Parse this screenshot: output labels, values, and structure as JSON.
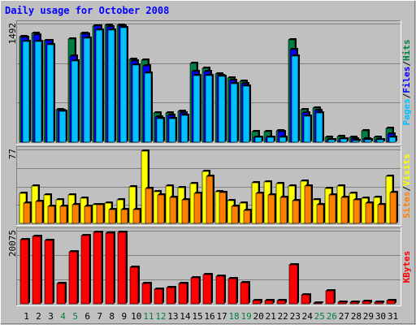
{
  "chart_data": {
    "type": "bar",
    "title": "Daily usage for October 2008",
    "colors": {
      "background": "#c0c0c0",
      "frame_light": "#ffffff",
      "frame_dark": "#808080",
      "title": "#0000ff",
      "grid": "#808080",
      "hits": "#008040",
      "files": "#0000ff",
      "pages": "#00c0ff",
      "visits": "#ffff00",
      "sites": "#ff8000",
      "kbytes": "#ff0000",
      "weekday_label": "#000000",
      "weekend_label": "#008040"
    },
    "categories": [
      "1",
      "2",
      "3",
      "4",
      "5",
      "6",
      "7",
      "8",
      "9",
      "10",
      "11",
      "12",
      "13",
      "14",
      "15",
      "16",
      "17",
      "18",
      "19",
      "20",
      "21",
      "22",
      "23",
      "24",
      "25",
      "26",
      "27",
      "28",
      "29",
      "30",
      "31"
    ],
    "weekend_days": [
      "4",
      "5",
      "11",
      "12",
      "18",
      "19",
      "25",
      "26"
    ],
    "panels": [
      {
        "id": "hits-files-pages",
        "ymax_label": "1492",
        "ymax": 1492,
        "legend": [
          {
            "text": "Pages",
            "color": "#00c0ff"
          },
          {
            "text": "Files",
            "color": "#0000ff"
          },
          {
            "text": "Hits",
            "color": "#008040"
          }
        ],
        "series": [
          {
            "name": "Hits",
            "values": [
              1352,
              1390,
              1300,
              415,
              1320,
              1385,
              1485,
              1490,
              1492,
              1056,
              1046,
              372,
              372,
              389,
              1009,
              945,
              875,
              818,
              780,
              132,
              136,
              142,
              1308,
              410,
              440,
              60,
              70,
              60,
              140,
              60,
              180
            ]
          },
          {
            "name": "Files",
            "values": [
              1340,
              1370,
              1290,
              405,
              1100,
              1378,
              1480,
              1468,
              1478,
              1040,
              970,
              322,
              340,
              369,
              900,
              905,
              854,
              787,
              746,
              65,
              66,
              132,
              1178,
              376,
              409,
              30,
              40,
              40,
              40,
              35,
              100
            ]
          },
          {
            "name": "Pages",
            "values": [
              1286,
              1282,
              1240,
              391,
              1040,
              1327,
              1425,
              1430,
              1460,
              980,
              880,
              297,
              303,
              345,
              846,
              845,
              843,
              750,
              720,
              62,
              60,
              60,
              1100,
              336,
              376,
              30,
              40,
              20,
              30,
              30,
              60
            ]
          }
        ]
      },
      {
        "id": "visits-sites",
        "ymax_label": "77",
        "ymax": 77,
        "legend": [
          {
            "text": "Sites",
            "color": "#ff8000"
          },
          {
            "text": "Visits",
            "color": "#ffff00"
          }
        ],
        "series": [
          {
            "name": "Visits",
            "values": [
              32,
              40,
              30,
              25,
              30,
              27,
              20,
              22,
              25,
              39,
              77,
              34,
              40,
              38,
              42,
              55,
              34,
              24,
              22,
              43,
              44,
              42,
              40,
              45,
              25,
              37,
              40,
              32,
              27,
              28,
              50
            ]
          },
          {
            "name": "Sites",
            "values": [
              22,
              23,
              18,
              18,
              20,
              18,
              20,
              15,
              15,
              15,
              37,
              30,
              28,
              25,
              32,
              50,
              33,
              18,
              14,
              32,
              30,
              28,
              24,
              40,
              20,
              30,
              28,
              25,
              22,
              20,
              33
            ]
          }
        ]
      },
      {
        "id": "kbytes",
        "ymax_label": "20075",
        "ymax": 20075,
        "legend": [
          {
            "text": "KBytes",
            "color": "#ff0000"
          }
        ],
        "series": [
          {
            "name": "KBytes",
            "values": [
              18000,
              19000,
              17900,
              5800,
              14700,
              19100,
              20000,
              19900,
              20075,
              10200,
              5800,
              4200,
              4600,
              5800,
              7400,
              8300,
              7800,
              7000,
              5900,
              900,
              800,
              800,
              11000,
              2600,
              300,
              3700,
              500,
              500,
              600,
              400,
              1000
            ]
          }
        ]
      }
    ]
  }
}
